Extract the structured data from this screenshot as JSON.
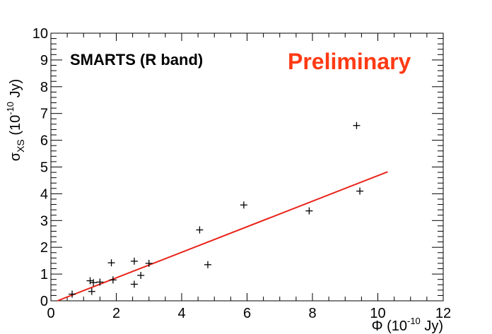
{
  "chart_data": {
    "type": "scatter",
    "title": "SMARTS (R band)",
    "annotation": "Preliminary",
    "annotation_color": "#ff3a14",
    "xlabel": {
      "main": "Φ (10",
      "exp": "-10",
      "tail": " Jy)"
    },
    "ylabel": {
      "main": "σ",
      "sub": "XS",
      "mid": " (10",
      "exp": "-10",
      "tail": " Jy)"
    },
    "xlim": [
      0,
      12
    ],
    "ylim": [
      0,
      10
    ],
    "x_ticks": [
      0,
      2,
      4,
      6,
      8,
      10,
      12
    ],
    "y_ticks": [
      0,
      1,
      2,
      3,
      4,
      5,
      6,
      7,
      8,
      9,
      10
    ],
    "grid": false,
    "marker": "plus",
    "marker_color": "#000000",
    "points": [
      {
        "x": 0.65,
        "y": 0.25
      },
      {
        "x": 1.2,
        "y": 0.75
      },
      {
        "x": 1.25,
        "y": 0.35
      },
      {
        "x": 1.3,
        "y": 0.68
      },
      {
        "x": 1.5,
        "y": 0.7
      },
      {
        "x": 1.85,
        "y": 1.42
      },
      {
        "x": 1.9,
        "y": 0.78
      },
      {
        "x": 2.55,
        "y": 1.48
      },
      {
        "x": 2.55,
        "y": 0.62
      },
      {
        "x": 2.75,
        "y": 0.95
      },
      {
        "x": 3.0,
        "y": 1.4
      },
      {
        "x": 4.55,
        "y": 2.65
      },
      {
        "x": 4.8,
        "y": 1.35
      },
      {
        "x": 5.9,
        "y": 3.58
      },
      {
        "x": 7.9,
        "y": 3.36
      },
      {
        "x": 9.35,
        "y": 6.55
      },
      {
        "x": 9.45,
        "y": 4.1
      }
    ],
    "fit_line": {
      "color": "#e8231a",
      "x": [
        0.2,
        10.3
      ],
      "y": [
        0.0,
        4.82
      ]
    }
  }
}
